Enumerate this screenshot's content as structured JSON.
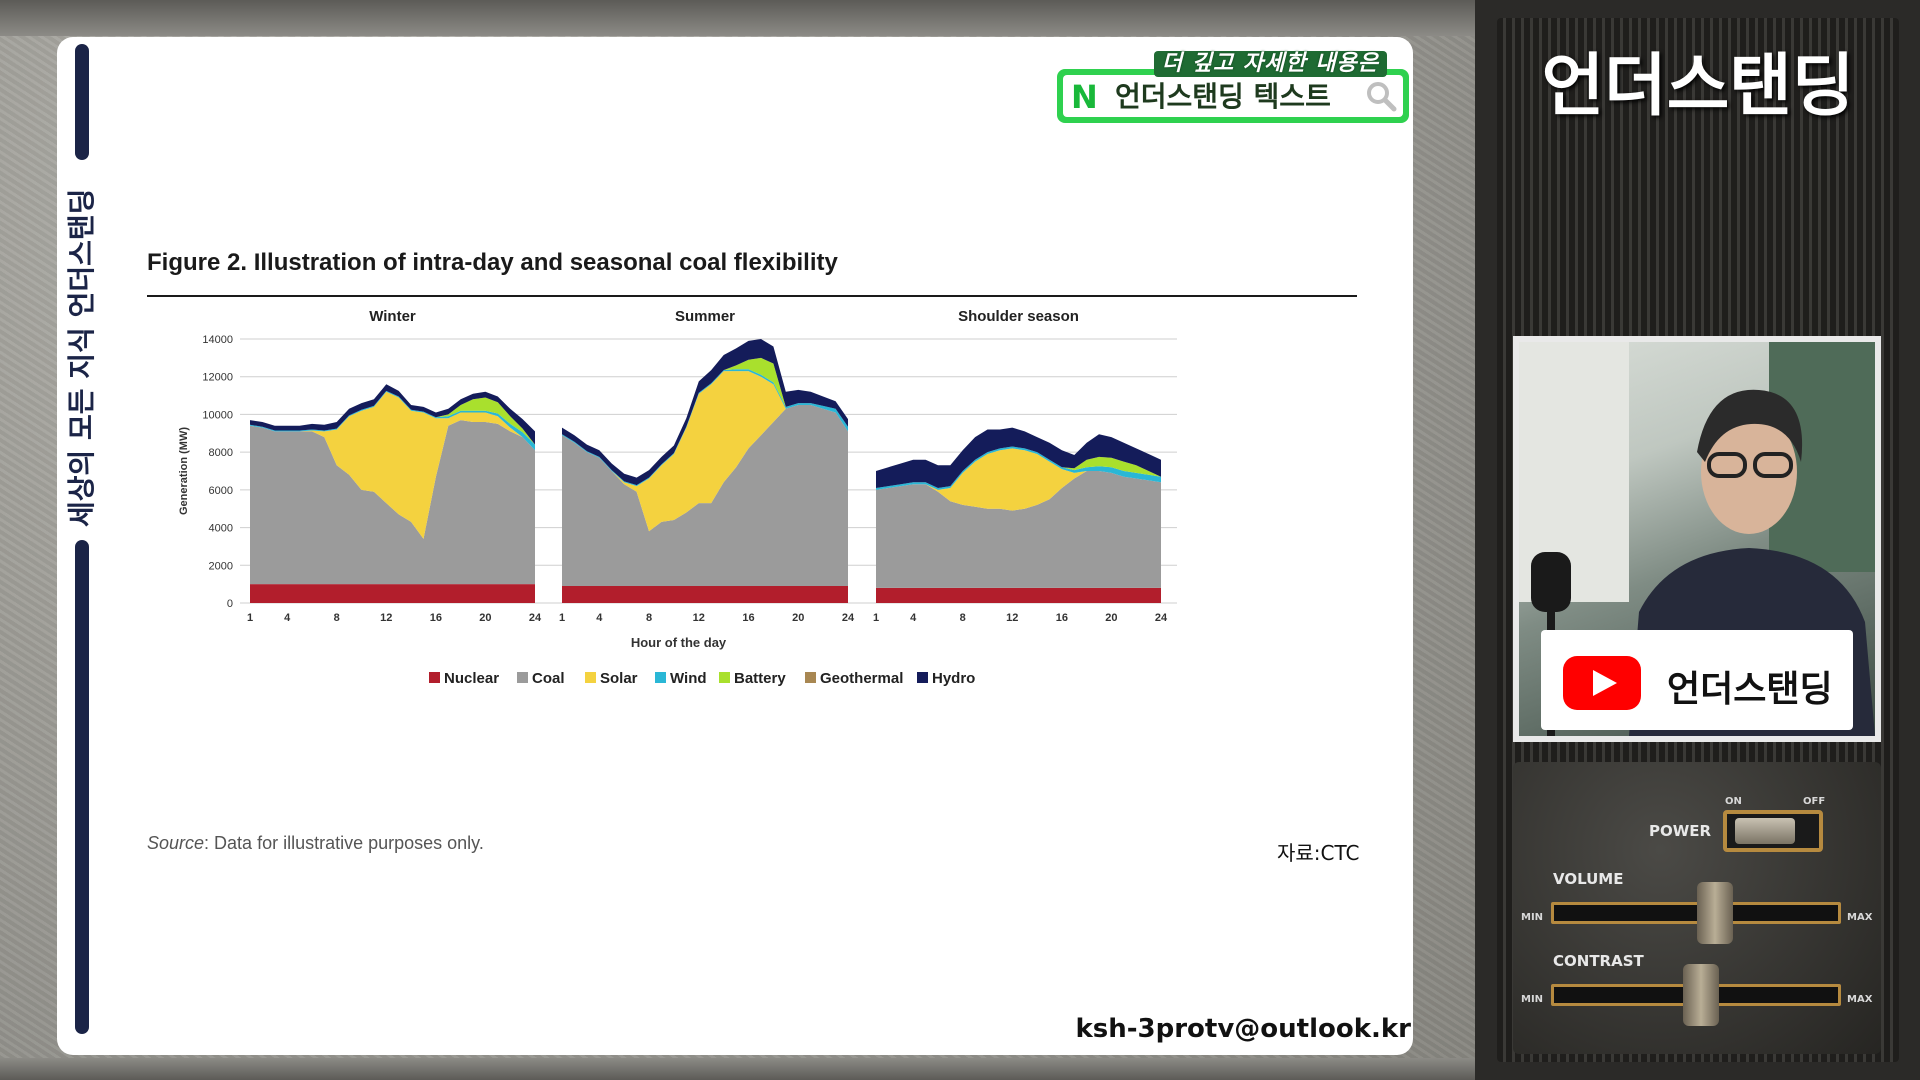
{
  "side_label": "세상의 모든 지식  언더스탠딩",
  "search_banner": {
    "top_text": "더 깊고 자세한 내용은",
    "logo": "N",
    "text": "언더스탠딩 텍스트",
    "icon": "search-icon"
  },
  "figure": {
    "title": "Figure 2. Illustration of intra-day and seasonal coal flexibility",
    "source_label": "Source",
    "source_text": ": Data for illustrative purposes only.",
    "credit": "자료:CTC"
  },
  "email": "ksh-3protv@outlook.kr",
  "panel": {
    "channel_title": "언더스탠딩",
    "yt_label": "언더스탠딩",
    "controls": {
      "power": "POWER",
      "on": "ON",
      "off": "OFF",
      "volume": "VOLUME",
      "contrast": "CONTRAST",
      "min": "MIN",
      "max": "MAX"
    }
  },
  "chart_data": {
    "type": "area",
    "stacked": true,
    "xlabel": "Hour of the day",
    "ylabel": "Generation (MW)",
    "ylim": [
      0,
      14000
    ],
    "y_ticks": [
      0,
      2000,
      4000,
      6000,
      8000,
      10000,
      12000,
      14000
    ],
    "x_ticks": [
      1,
      4,
      8,
      12,
      16,
      20,
      24
    ],
    "grid": true,
    "legend_position": "bottom",
    "legend": [
      "Nuclear",
      "Coal",
      "Solar",
      "Wind",
      "Battery",
      "Geothermal",
      "Hydro"
    ],
    "colors": {
      "Nuclear": "#b21e2c",
      "Coal": "#9b9b9b",
      "Solar": "#f4d23f",
      "Wind": "#2ab7d6",
      "Battery": "#a9e02d",
      "Geothermal": "#a88752",
      "Hydro": "#141c5a"
    },
    "hours": [
      1,
      2,
      3,
      4,
      5,
      6,
      7,
      8,
      9,
      10,
      11,
      12,
      13,
      14,
      15,
      16,
      17,
      18,
      19,
      20,
      21,
      22,
      23,
      24
    ],
    "panels": [
      {
        "title": "Winter",
        "series": {
          "Nuclear": [
            1000,
            1000,
            1000,
            1000,
            1000,
            1000,
            1000,
            1000,
            1000,
            1000,
            1000,
            1000,
            1000,
            1000,
            1000,
            1000,
            1000,
            1000,
            1000,
            1000,
            1000,
            1000,
            1000,
            1000
          ],
          "Coal": [
            8400,
            8300,
            8100,
            8100,
            8100,
            8100,
            7800,
            6300,
            5800,
            5000,
            4900,
            4300,
            3700,
            3300,
            2400,
            5700,
            8400,
            8700,
            8600,
            8600,
            8500,
            8100,
            7800,
            7100
          ],
          "Solar": [
            0,
            0,
            0,
            0,
            0,
            50,
            300,
            1900,
            3100,
            4200,
            4500,
            5900,
            6200,
            5900,
            6700,
            3100,
            400,
            400,
            500,
            500,
            400,
            200,
            0,
            0
          ],
          "Wind": [
            50,
            50,
            50,
            50,
            50,
            50,
            50,
            50,
            50,
            50,
            50,
            50,
            50,
            50,
            50,
            50,
            100,
            100,
            100,
            100,
            150,
            200,
            250,
            300
          ],
          "Battery": [
            0,
            0,
            0,
            0,
            0,
            0,
            0,
            0,
            0,
            0,
            0,
            0,
            0,
            0,
            0,
            0,
            100,
            300,
            600,
            700,
            600,
            400,
            200,
            0
          ],
          "Geothermal": [
            0,
            0,
            0,
            0,
            0,
            0,
            0,
            0,
            0,
            0,
            0,
            0,
            0,
            0,
            0,
            0,
            0,
            0,
            0,
            0,
            0,
            0,
            0,
            0
          ],
          "Hydro": [
            250,
            250,
            250,
            250,
            250,
            300,
            300,
            350,
            350,
            350,
            350,
            350,
            300,
            250,
            250,
            250,
            300,
            300,
            300,
            300,
            300,
            400,
            500,
            700
          ]
        }
      },
      {
        "title": "Summer",
        "series": {
          "Nuclear": [
            900,
            900,
            900,
            900,
            900,
            900,
            900,
            900,
            900,
            900,
            900,
            900,
            900,
            900,
            900,
            900,
            900,
            900,
            900,
            900,
            900,
            900,
            900,
            900
          ],
          "Coal": [
            8000,
            7600,
            7100,
            6800,
            6100,
            5400,
            5000,
            2900,
            3400,
            3500,
            3900,
            4400,
            4400,
            5500,
            6300,
            7300,
            8000,
            8700,
            9400,
            9600,
            9600,
            9400,
            9200,
            8200
          ],
          "Solar": [
            0,
            0,
            0,
            0,
            0,
            100,
            300,
            2800,
            3000,
            3500,
            4500,
            5800,
            6300,
            5900,
            5100,
            4100,
            3100,
            2000,
            0,
            0,
            0,
            0,
            0,
            0
          ],
          "Wind": [
            50,
            50,
            50,
            50,
            50,
            50,
            50,
            50,
            50,
            50,
            50,
            50,
            50,
            50,
            100,
            100,
            100,
            100,
            100,
            100,
            100,
            150,
            200,
            250
          ],
          "Battery": [
            0,
            0,
            0,
            0,
            0,
            0,
            0,
            0,
            0,
            0,
            0,
            0,
            0,
            0,
            200,
            500,
            900,
            1000,
            0,
            0,
            0,
            0,
            0,
            0
          ],
          "Geothermal": [
            0,
            0,
            0,
            0,
            0,
            0,
            0,
            0,
            0,
            0,
            0,
            0,
            0,
            0,
            0,
            0,
            0,
            0,
            0,
            0,
            0,
            0,
            0,
            0
          ],
          "Hydro": [
            350,
            350,
            350,
            350,
            350,
            400,
            400,
            400,
            400,
            400,
            450,
            600,
            700,
            800,
            900,
            1000,
            1000,
            900,
            800,
            700,
            600,
            500,
            400,
            400
          ]
        }
      },
      {
        "title": "Shoulder season",
        "series": {
          "Nuclear": [
            800,
            800,
            800,
            800,
            800,
            800,
            800,
            800,
            800,
            800,
            800,
            800,
            800,
            800,
            800,
            800,
            800,
            800,
            800,
            800,
            800,
            800,
            800,
            800
          ],
          "Coal": [
            5200,
            5300,
            5400,
            5500,
            5500,
            5100,
            4600,
            4400,
            4300,
            4200,
            4200,
            4100,
            4200,
            4400,
            4700,
            5300,
            5800,
            6200,
            6200,
            6100,
            5900,
            5800,
            5700,
            5600
          ],
          "Solar": [
            0,
            0,
            0,
            0,
            0,
            100,
            700,
            1700,
            2400,
            2900,
            3100,
            3300,
            3100,
            2700,
            2000,
            1000,
            300,
            0,
            0,
            0,
            0,
            0,
            0,
            0
          ],
          "Wind": [
            100,
            100,
            100,
            100,
            100,
            100,
            100,
            100,
            100,
            100,
            100,
            100,
            100,
            100,
            100,
            100,
            150,
            200,
            250,
            300,
            300,
            300,
            300,
            300
          ],
          "Battery": [
            0,
            0,
            0,
            0,
            0,
            0,
            0,
            0,
            0,
            0,
            0,
            0,
            0,
            0,
            0,
            0,
            100,
            400,
            500,
            500,
            500,
            400,
            200,
            0
          ],
          "Geothermal": [
            0,
            0,
            0,
            0,
            0,
            0,
            0,
            0,
            0,
            0,
            0,
            0,
            0,
            0,
            0,
            0,
            0,
            0,
            0,
            0,
            0,
            0,
            0,
            0
          ],
          "Hydro": [
            900,
            1000,
            1100,
            1200,
            1200,
            1200,
            1100,
            1100,
            1200,
            1200,
            1000,
            1000,
            900,
            800,
            900,
            900,
            700,
            900,
            1200,
            1100,
            1000,
            900,
            900,
            900
          ]
        }
      }
    ]
  }
}
